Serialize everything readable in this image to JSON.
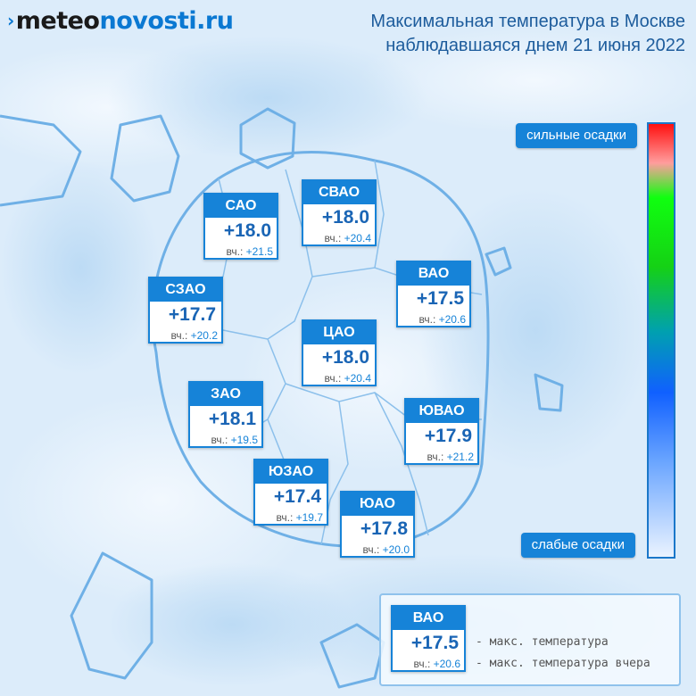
{
  "logo": {
    "mark": "›",
    "part1": "meteo",
    "part2": "novosti.ru"
  },
  "title": {
    "line1": "Максимальная температура в Москве",
    "line2": "наблюдавшаяся днем 21 июня 2022"
  },
  "scale": {
    "top_label": "сильные осадки",
    "bottom_label": "слабые осадки",
    "colors": [
      "#ff1010",
      "#ff9d9d",
      "#10ff10",
      "#15d115",
      "#00a0b0",
      "#1060ff",
      "#6aa5ff",
      "#eaf3ff"
    ]
  },
  "yesterday_prefix": "вч.:",
  "districts": [
    {
      "name": "САО",
      "temp": "+18.0",
      "yesterday": "+21.5"
    },
    {
      "name": "СВАО",
      "temp": "+18.0",
      "yesterday": "+20.4"
    },
    {
      "name": "ВАО",
      "temp": "+17.5",
      "yesterday": "+20.6"
    },
    {
      "name": "СЗАО",
      "temp": "+17.7",
      "yesterday": "+20.2"
    },
    {
      "name": "ЦАО",
      "temp": "+18.0",
      "yesterday": "+20.4"
    },
    {
      "name": "ЗАО",
      "temp": "+18.1",
      "yesterday": "+19.5"
    },
    {
      "name": "ЮВАО",
      "temp": "+17.9",
      "yesterday": "+21.2"
    },
    {
      "name": "ЮЗАО",
      "temp": "+17.4",
      "yesterday": "+19.7"
    },
    {
      "name": "ЮАО",
      "temp": "+17.8",
      "yesterday": "+20.0"
    }
  ],
  "legend": {
    "sample": {
      "name": "ВАО",
      "temp": "+17.5",
      "yesterday": "+20.6"
    },
    "temp_desc": "- макс. температура",
    "yesterday_desc": "- макс. температура вчера"
  },
  "colors": {
    "accent": "#1683d8",
    "title": "#1d5c9c",
    "map_bg": "#dcecfa"
  }
}
